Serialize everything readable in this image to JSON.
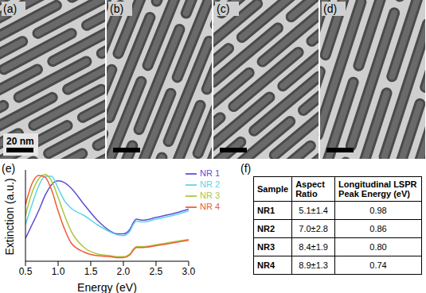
{
  "panel_labels": [
    "(a)",
    "(b)",
    "(c)",
    "(d)",
    "(e)",
    "(f)"
  ],
  "scale_bar": "20 nm",
  "chart_data": {
    "type": "line",
    "x_label": "Energy (eV)",
    "y_label": "Extinction (a.u.)",
    "x": [
      0.5,
      0.6,
      0.7,
      0.8,
      0.9,
      1.0,
      1.1,
      1.2,
      1.4,
      1.6,
      1.8,
      1.9,
      2.0,
      2.1,
      2.15,
      2.2,
      2.3,
      2.5,
      2.75,
      3.0
    ],
    "series": [
      {
        "name": "NR 1",
        "color": "#5b4fd6",
        "values": [
          0.25,
          0.4,
          0.55,
          0.72,
          0.84,
          0.88,
          0.86,
          0.8,
          0.62,
          0.45,
          0.33,
          0.3,
          0.3,
          0.35,
          0.42,
          0.46,
          0.45,
          0.48,
          0.52,
          0.57
        ]
      },
      {
        "name": "NR 2",
        "color": "#5fd3e8",
        "values": [
          0.4,
          0.62,
          0.82,
          0.93,
          0.93,
          0.8,
          0.66,
          0.58,
          0.5,
          0.4,
          0.32,
          0.29,
          0.28,
          0.33,
          0.4,
          0.44,
          0.43,
          0.46,
          0.5,
          0.55
        ]
      },
      {
        "name": "NR 3",
        "color": "#a8c83a",
        "values": [
          0.5,
          0.75,
          0.9,
          0.95,
          0.88,
          0.7,
          0.5,
          0.33,
          0.15,
          0.08,
          0.06,
          0.05,
          0.05,
          0.08,
          0.13,
          0.16,
          0.16,
          0.18,
          0.21,
          0.24
        ]
      },
      {
        "name": "NR 4",
        "color": "#ef5a3a",
        "values": [
          0.62,
          0.85,
          0.94,
          0.92,
          0.78,
          0.55,
          0.35,
          0.2,
          0.1,
          0.06,
          0.05,
          0.04,
          0.04,
          0.07,
          0.12,
          0.15,
          0.15,
          0.17,
          0.2,
          0.23
        ]
      }
    ],
    "xlim": [
      0.5,
      3.0
    ],
    "xticks": [
      0.5,
      {
        "value": 1,
        "label": "1.0"
      },
      1.5,
      {
        "value": 2,
        "label": "2.0"
      },
      2.5,
      {
        "value": 3,
        "label": "3.0"
      }
    ],
    "ylim": [
      0,
      1
    ],
    "tick_labels": "x",
    "legend": "upper right"
  },
  "table": {
    "header": [
      "Sample",
      "Aspect Ratio",
      "Longitudinal LSPR Peak Energy (eV)"
    ],
    "rows": [
      [
        "NR1",
        "5.1±1.4",
        "0.98"
      ],
      [
        "NR2",
        "7.0±2.8",
        "0.86"
      ],
      [
        "NR3",
        "8.4±1.9",
        "0.80"
      ],
      [
        "NR4",
        "8.9±1.3",
        "0.74"
      ]
    ]
  }
}
